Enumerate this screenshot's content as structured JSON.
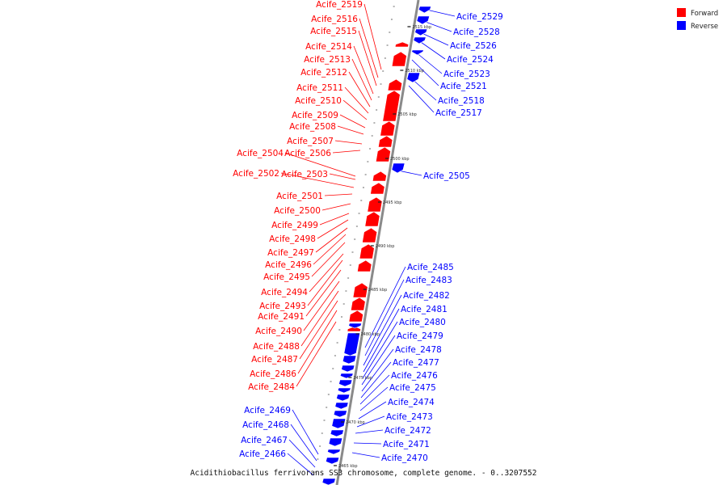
{
  "colors": {
    "forward": "#ff0000",
    "reverse": "#0000ff",
    "axis": "#7f7f7f",
    "connector_forward": "#e03030",
    "connector_reverse": "#3a3af0"
  },
  "legend": [
    {
      "label": "Forward",
      "strand": "forward"
    },
    {
      "label": "Reverse",
      "strand": "reverse"
    }
  ],
  "caption": "Acidithiobacillus ferrivorans SS3 chromosome, complete genome. - 0..3207552",
  "tick_labels": [
    "2515 kbp",
    "2510 kbp",
    "2505 kbp",
    "2500 kbp",
    "2495 kbp",
    "2490 kbp",
    "2485 kbp",
    "2480 kbp",
    "2475 kbp",
    "2470 kbp",
    "2465 kbp"
  ],
  "forward_genes": [
    "Acife_2519",
    "Acife_2516",
    "Acife_2515",
    "Acife_2514",
    "Acife_2513",
    "Acife_2512",
    "Acife_2511",
    "Acife_2510",
    "Acife_2509",
    "Acife_2508",
    "Acife_2507",
    "Acife_2506",
    "Acife_2504",
    "Acife_2503",
    "Acife_2502",
    "Acife_2501",
    "Acife_2500",
    "Acife_2499",
    "Acife_2498",
    "Acife_2497",
    "Acife_2496",
    "Acife_2495",
    "Acife_2494",
    "Acife_2493",
    "Acife_2491",
    "Acife_2490",
    "Acife_2488",
    "Acife_2487",
    "Acife_2486",
    "Acife_2484"
  ],
  "reverse_genes_top": [
    "Acife_2529",
    "Acife_2528",
    "Acife_2526",
    "Acife_2524",
    "Acife_2523",
    "Acife_2521",
    "Acife_2518",
    "Acife_2517",
    "Acife_2505"
  ],
  "reverse_genes_middle": [
    "Acife_2485",
    "Acife_2483",
    "Acife_2482",
    "Acife_2481",
    "Acife_2480",
    "Acife_2479",
    "Acife_2478",
    "Acife_2477",
    "Acife_2476",
    "Acife_2475",
    "Acife_2474",
    "Acife_2473",
    "Acife_2472",
    "Acife_2471",
    "Acife_2470"
  ],
  "reverse_genes_left": [
    "Acife_2469",
    "Acife_2468",
    "Acife_2467",
    "Acife_2466"
  ]
}
